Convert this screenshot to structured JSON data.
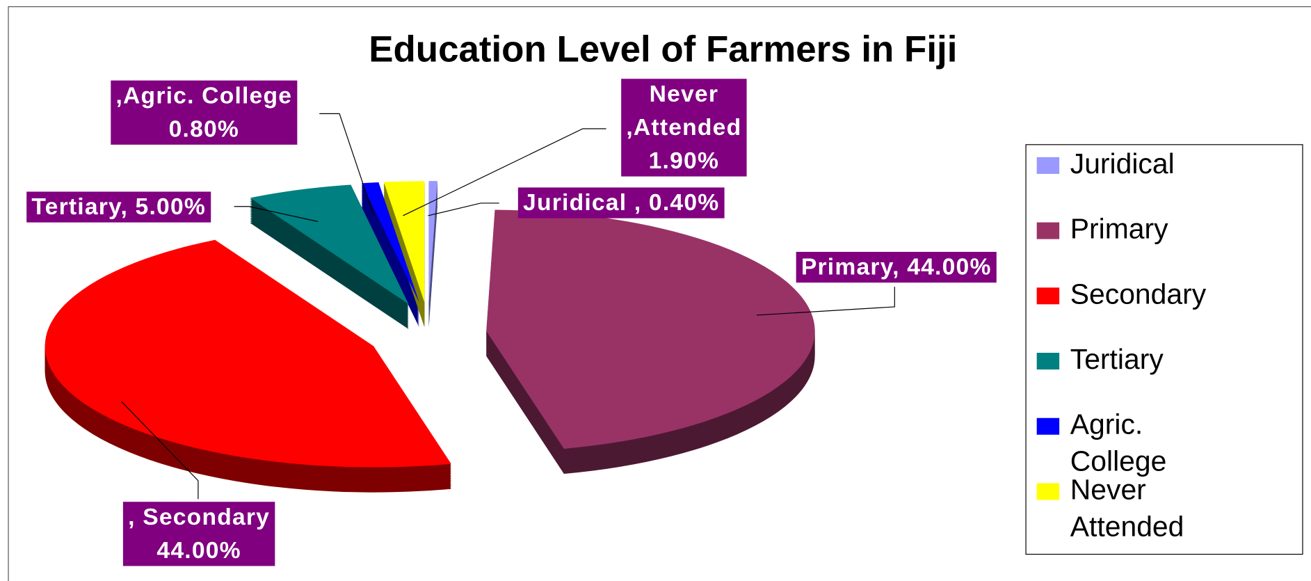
{
  "chart_data": {
    "type": "pie3d",
    "title": "Education Level of Farmers in Fiji",
    "categories": [
      "Juridical",
      "Primary",
      "Secondary",
      "Tertiary",
      "Agric. College",
      "Never Attended"
    ],
    "values": [
      0.4,
      44,
      44,
      5,
      0.8,
      1.9
    ],
    "value_labels": [
      "Juridical , 0.40%",
      "Primary, 44.00%",
      ", Secondary\n44.00%",
      "Tertiary, 5.00%",
      ",Agric. College\n0.80%",
      "Never\n,Attended\n1.90%"
    ],
    "colors": [
      "#9999ff",
      "#993366",
      "#ff0000",
      "#008080",
      "#0000ff",
      "#ffff00"
    ],
    "legend": "right"
  }
}
